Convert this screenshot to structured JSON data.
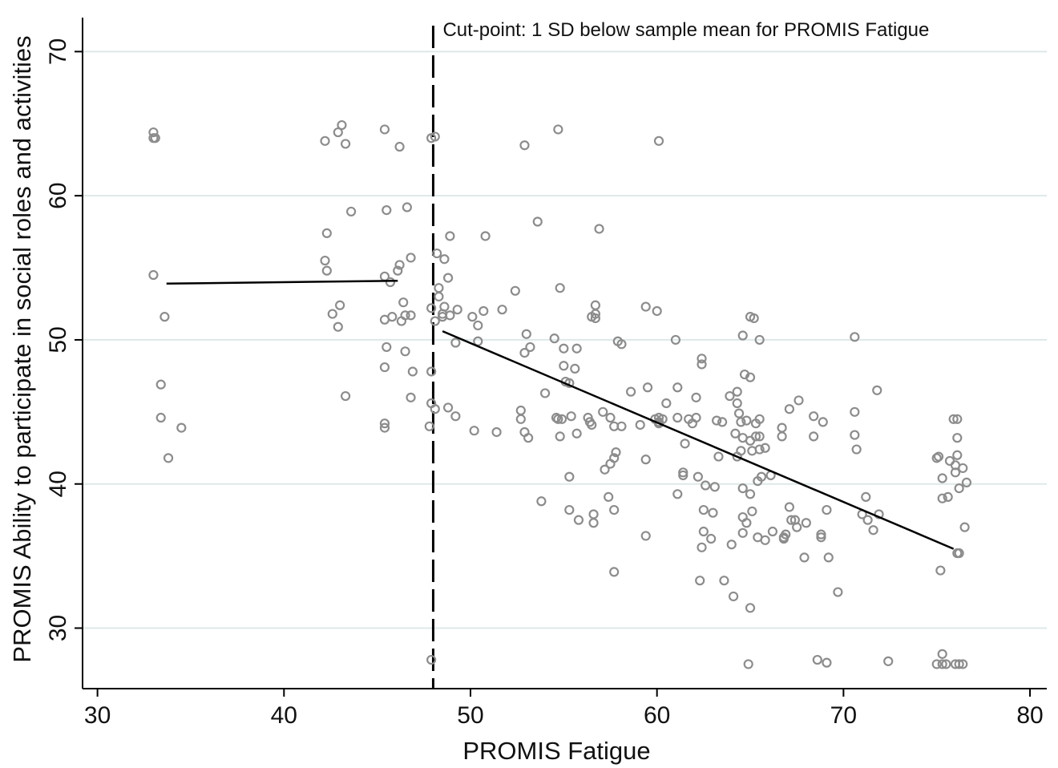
{
  "colors": {
    "grid": "#dde8e8",
    "point": "#8c8c8c",
    "axis": "#000000",
    "fit": "#000000"
  },
  "chart_data": {
    "type": "scatter",
    "xlabel": "PROMIS Fatigue",
    "ylabel": "PROMIS Ability to participate in social roles and activities",
    "xlim": [
      29.2,
      80.9
    ],
    "ylim": [
      25.8,
      71.8
    ],
    "x_ticks": [
      30,
      40,
      50,
      60,
      70,
      80
    ],
    "y_ticks": [
      30,
      40,
      50,
      60,
      70
    ],
    "grid": "horizontal",
    "cutpoint": {
      "x": 48.0,
      "label": "Cut-point: 1 SD below sample mean for PROMIS Fatigue"
    },
    "fit_lines": [
      {
        "x": [
          33.7,
          46.1
        ],
        "y": [
          53.9,
          54.1
        ]
      },
      {
        "x": [
          48.5,
          75.9
        ],
        "y": [
          50.6,
          35.5
        ]
      }
    ],
    "points": [
      [
        33.0,
        64.4
      ],
      [
        33.0,
        64.0
      ],
      [
        33.1,
        64.0
      ],
      [
        33.0,
        54.5
      ],
      [
        33.6,
        51.6
      ],
      [
        33.4,
        46.9
      ],
      [
        33.4,
        44.6
      ],
      [
        33.8,
        41.8
      ],
      [
        34.5,
        43.9
      ],
      [
        42.2,
        63.8
      ],
      [
        42.9,
        64.4
      ],
      [
        43.1,
        64.9
      ],
      [
        43.3,
        63.6
      ],
      [
        43.6,
        58.9
      ],
      [
        42.3,
        57.4
      ],
      [
        42.2,
        55.5
      ],
      [
        42.3,
        54.8
      ],
      [
        42.6,
        51.8
      ],
      [
        43.0,
        52.4
      ],
      [
        42.9,
        50.9
      ],
      [
        43.3,
        46.1
      ],
      [
        45.4,
        64.6
      ],
      [
        46.2,
        63.4
      ],
      [
        45.5,
        59.0
      ],
      [
        46.6,
        59.2
      ],
      [
        46.2,
        55.2
      ],
      [
        46.1,
        54.8
      ],
      [
        46.8,
        55.7
      ],
      [
        45.4,
        54.4
      ],
      [
        45.7,
        54.0
      ],
      [
        45.4,
        51.4
      ],
      [
        45.8,
        51.6
      ],
      [
        46.4,
        52.6
      ],
      [
        46.5,
        51.7
      ],
      [
        46.8,
        51.7
      ],
      [
        46.3,
        51.3
      ],
      [
        45.5,
        49.5
      ],
      [
        46.5,
        49.2
      ],
      [
        45.4,
        48.1
      ],
      [
        46.9,
        47.8
      ],
      [
        46.8,
        46.0
      ],
      [
        45.4,
        44.2
      ],
      [
        45.4,
        43.9
      ],
      [
        47.9,
        64.0
      ],
      [
        48.1,
        64.1
      ],
      [
        48.2,
        56.0
      ],
      [
        48.6,
        55.6
      ],
      [
        48.8,
        54.3
      ],
      [
        48.3,
        53.6
      ],
      [
        48.3,
        53.0
      ],
      [
        47.9,
        52.2
      ],
      [
        48.5,
        51.6
      ],
      [
        48.1,
        51.3
      ],
      [
        48.5,
        51.8
      ],
      [
        48.6,
        52.3
      ],
      [
        48.9,
        51.7
      ],
      [
        49.3,
        52.1
      ],
      [
        47.9,
        47.8
      ],
      [
        47.9,
        45.6
      ],
      [
        48.1,
        45.2
      ],
      [
        47.8,
        44.0
      ],
      [
        48.9,
        57.2
      ],
      [
        49.2,
        49.8
      ],
      [
        48.8,
        45.3
      ],
      [
        49.2,
        44.7
      ],
      [
        47.9,
        27.8
      ],
      [
        50.1,
        51.6
      ],
      [
        50.4,
        51.0
      ],
      [
        50.7,
        52.0
      ],
      [
        50.4,
        49.9
      ],
      [
        50.8,
        57.2
      ],
      [
        50.2,
        43.7
      ],
      [
        51.4,
        43.6
      ],
      [
        51.7,
        52.1
      ],
      [
        52.4,
        53.4
      ],
      [
        52.9,
        63.5
      ],
      [
        52.9,
        49.1
      ],
      [
        53.0,
        50.4
      ],
      [
        53.2,
        49.5
      ],
      [
        52.7,
        45.1
      ],
      [
        52.7,
        44.5
      ],
      [
        52.9,
        43.6
      ],
      [
        53.1,
        43.2
      ],
      [
        53.6,
        58.2
      ],
      [
        53.8,
        38.8
      ],
      [
        54.0,
        46.3
      ],
      [
        54.5,
        50.1
      ],
      [
        54.6,
        44.6
      ],
      [
        54.7,
        44.5
      ],
      [
        54.9,
        44.5
      ],
      [
        54.7,
        64.6
      ],
      [
        54.8,
        53.6
      ],
      [
        55.0,
        49.4
      ],
      [
        55.0,
        48.2
      ],
      [
        55.1,
        47.1
      ],
      [
        55.3,
        47.0
      ],
      [
        55.7,
        49.4
      ],
      [
        55.6,
        48.0
      ],
      [
        54.8,
        43.3
      ],
      [
        55.4,
        44.7
      ],
      [
        55.7,
        43.5
      ],
      [
        55.3,
        40.5
      ],
      [
        55.3,
        38.2
      ],
      [
        55.8,
        37.5
      ],
      [
        56.3,
        44.6
      ],
      [
        56.4,
        44.3
      ],
      [
        56.5,
        44.1
      ],
      [
        56.5,
        51.6
      ],
      [
        56.7,
        52.4
      ],
      [
        56.7,
        51.8
      ],
      [
        56.7,
        51.5
      ],
      [
        56.9,
        57.7
      ],
      [
        57.1,
        45.0
      ],
      [
        57.2,
        41.0
      ],
      [
        57.4,
        39.1
      ],
      [
        57.5,
        41.4
      ],
      [
        57.7,
        41.8
      ],
      [
        57.8,
        42.2
      ],
      [
        57.7,
        44.0
      ],
      [
        57.5,
        44.6
      ],
      [
        57.9,
        49.9
      ],
      [
        58.1,
        49.7
      ],
      [
        58.1,
        44.0
      ],
      [
        56.6,
        37.9
      ],
      [
        56.6,
        37.3
      ],
      [
        57.7,
        38.2
      ],
      [
        57.7,
        33.9
      ],
      [
        58.6,
        46.4
      ],
      [
        59.1,
        44.1
      ],
      [
        59.4,
        52.3
      ],
      [
        59.5,
        46.7
      ],
      [
        59.4,
        41.7
      ],
      [
        59.4,
        36.4
      ],
      [
        59.9,
        44.5
      ],
      [
        60.0,
        52.0
      ],
      [
        60.1,
        44.3
      ],
      [
        60.1,
        44.2
      ],
      [
        60.1,
        44.6
      ],
      [
        60.3,
        44.5
      ],
      [
        60.1,
        63.8
      ],
      [
        60.5,
        45.6
      ],
      [
        61.0,
        50.0
      ],
      [
        61.1,
        44.6
      ],
      [
        61.1,
        46.7
      ],
      [
        61.1,
        39.3
      ],
      [
        61.4,
        40.6
      ],
      [
        61.4,
        40.8
      ],
      [
        61.5,
        42.8
      ],
      [
        61.7,
        44.5
      ],
      [
        61.9,
        44.2
      ],
      [
        62.1,
        44.6
      ],
      [
        62.1,
        46.0
      ],
      [
        62.2,
        40.5
      ],
      [
        62.4,
        48.7
      ],
      [
        62.4,
        48.3
      ],
      [
        62.3,
        33.3
      ],
      [
        62.5,
        38.2
      ],
      [
        62.5,
        36.7
      ],
      [
        62.4,
        35.6
      ],
      [
        62.6,
        39.9
      ],
      [
        62.9,
        36.2
      ],
      [
        63.2,
        44.4
      ],
      [
        63.1,
        39.8
      ],
      [
        63.0,
        38.0
      ],
      [
        63.3,
        41.9
      ],
      [
        63.5,
        44.3
      ],
      [
        63.6,
        33.3
      ],
      [
        63.9,
        46.1
      ],
      [
        64.0,
        35.8
      ],
      [
        64.1,
        32.2
      ],
      [
        64.2,
        43.5
      ],
      [
        64.3,
        45.6
      ],
      [
        64.3,
        46.4
      ],
      [
        64.3,
        41.9
      ],
      [
        64.4,
        44.9
      ],
      [
        64.5,
        44.3
      ],
      [
        64.6,
        43.2
      ],
      [
        64.5,
        42.3
      ],
      [
        64.6,
        37.7
      ],
      [
        64.6,
        39.7
      ],
      [
        64.6,
        36.6
      ],
      [
        64.6,
        50.3
      ],
      [
        64.7,
        47.6
      ],
      [
        64.8,
        44.4
      ],
      [
        64.8,
        37.3
      ],
      [
        64.9,
        27.5
      ],
      [
        65.0,
        51.6
      ],
      [
        65.0,
        47.4
      ],
      [
        65.0,
        43.0
      ],
      [
        65.0,
        39.3
      ],
      [
        65.0,
        31.4
      ],
      [
        65.1,
        38.1
      ],
      [
        65.1,
        42.3
      ],
      [
        65.2,
        51.5
      ],
      [
        65.3,
        44.2
      ],
      [
        65.3,
        43.3
      ],
      [
        65.4,
        36.3
      ],
      [
        65.4,
        40.2
      ],
      [
        65.5,
        50.0
      ],
      [
        65.5,
        44.5
      ],
      [
        65.5,
        43.3
      ],
      [
        65.5,
        42.4
      ],
      [
        65.6,
        40.5
      ],
      [
        65.8,
        42.5
      ],
      [
        65.8,
        36.1
      ],
      [
        66.1,
        40.6
      ],
      [
        66.2,
        36.7
      ],
      [
        66.7,
        43.9
      ],
      [
        66.7,
        43.3
      ],
      [
        66.8,
        36.2
      ],
      [
        66.8,
        36.3
      ],
      [
        66.9,
        36.5
      ],
      [
        67.1,
        38.4
      ],
      [
        67.1,
        45.2
      ],
      [
        67.2,
        37.5
      ],
      [
        67.4,
        37.5
      ],
      [
        67.5,
        37.0
      ],
      [
        67.6,
        45.8
      ],
      [
        68.0,
        37.3
      ],
      [
        67.9,
        34.9
      ],
      [
        68.4,
        44.7
      ],
      [
        68.4,
        43.3
      ],
      [
        68.6,
        27.8
      ],
      [
        68.8,
        36.3
      ],
      [
        68.8,
        36.5
      ],
      [
        68.9,
        44.3
      ],
      [
        69.1,
        38.2
      ],
      [
        69.2,
        34.9
      ],
      [
        69.1,
        27.6
      ],
      [
        69.7,
        32.5
      ],
      [
        70.6,
        50.2
      ],
      [
        70.6,
        45.0
      ],
      [
        70.6,
        43.4
      ],
      [
        70.7,
        42.4
      ],
      [
        71.0,
        37.9
      ],
      [
        71.2,
        39.1
      ],
      [
        71.3,
        37.5
      ],
      [
        71.6,
        36.8
      ],
      [
        71.8,
        46.5
      ],
      [
        71.9,
        37.9
      ],
      [
        72.4,
        27.7
      ],
      [
        75.0,
        41.8
      ],
      [
        75.1,
        41.9
      ],
      [
        75.3,
        39.0
      ],
      [
        75.3,
        40.4
      ],
      [
        75.2,
        34.0
      ],
      [
        75.3,
        28.2
      ],
      [
        75.0,
        27.5
      ],
      [
        75.3,
        27.5
      ],
      [
        75.5,
        27.5
      ],
      [
        75.6,
        39.1
      ],
      [
        75.7,
        41.6
      ],
      [
        75.9,
        44.5
      ],
      [
        76.1,
        44.5
      ],
      [
        76.0,
        41.3
      ],
      [
        76.0,
        40.8
      ],
      [
        76.1,
        42.0
      ],
      [
        76.1,
        43.2
      ],
      [
        76.0,
        27.5
      ],
      [
        76.2,
        35.2
      ],
      [
        76.1,
        35.2
      ],
      [
        76.2,
        39.7
      ],
      [
        76.2,
        27.5
      ],
      [
        76.4,
        41.1
      ],
      [
        76.5,
        37.0
      ],
      [
        76.6,
        40.1
      ],
      [
        76.4,
        27.5
      ]
    ]
  }
}
